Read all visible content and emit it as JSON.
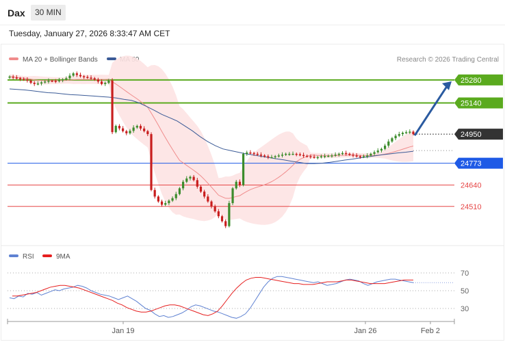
{
  "header": {
    "symbol": "Dax",
    "timeframe": "30 MIN",
    "datetime": "Tuesday, January 27, 2026 8:33:47 AM CET"
  },
  "legend": {
    "ma20_label": "MA 20 + Bollinger Bands",
    "ma50_label": "MA 50",
    "copyright": "Research © 2026 Trading Central",
    "rsi_label": "RSI",
    "rsi_ma_label": "9MA"
  },
  "colors": {
    "ma20": "#f08c8c",
    "ma50": "#3a5a96",
    "bands": "#fde3e3",
    "bull": "#3c8c2c",
    "bear": "#c81e1e",
    "resistance": "#5aaa1e",
    "current": "#333333",
    "pivot": "#1e5ae6",
    "support": "#e64646",
    "rsi": "#5f82d2",
    "rsi_ma": "#e61e1e",
    "arrow": "#2a5aa0"
  },
  "chart_data": [
    {
      "type": "candlestick",
      "title": "Dax",
      "interval": "30 MIN",
      "ylim": [
        24330,
        25350
      ],
      "x_ticks": [
        "Jan 19",
        "Jan 26",
        "Feb 2"
      ],
      "last_price": 24950,
      "levels": [
        {
          "value": 25280,
          "label": "25280",
          "kind": "resistance"
        },
        {
          "value": 25140,
          "label": "25140",
          "kind": "resistance"
        },
        {
          "value": 24950,
          "label": "24950",
          "kind": "current"
        },
        {
          "value": 24773,
          "label": "24773",
          "kind": "pivot"
        },
        {
          "value": 24640,
          "label": "24640",
          "kind": "support"
        },
        {
          "value": 24510,
          "label": "24510",
          "kind": "support"
        }
      ],
      "close": [
        25300,
        25295,
        25290,
        25285,
        25282,
        25276,
        25262,
        25255,
        25258,
        25265,
        25270,
        25275,
        25274,
        25272,
        25278,
        25283,
        25290,
        25306,
        25320,
        25310,
        25302,
        25298,
        25294,
        25290,
        25282,
        25270,
        25255,
        25262,
        25276,
        24962,
        25000,
        24985,
        24968,
        24955,
        24970,
        24990,
        25000,
        24984,
        24968,
        24950,
        24610,
        24570,
        24540,
        24520,
        24530,
        24545,
        24560,
        24585,
        24620,
        24660,
        24680,
        24690,
        24670,
        24630,
        24600,
        24570,
        24540,
        24510,
        24480,
        24450,
        24420,
        24390,
        24530,
        24620,
        24660,
        24640,
        24830,
        24838,
        24835,
        24830,
        24825,
        24820,
        24815,
        24810,
        24810,
        24815,
        24820,
        24825,
        24830,
        24830,
        24830,
        24827,
        24823,
        24818,
        24815,
        24812,
        24808,
        24810,
        24815,
        24817,
        24818,
        24820,
        24825,
        24830,
        24835,
        24830,
        24825,
        24820,
        24815,
        24812,
        24815,
        24820,
        24830,
        24840,
        24850,
        24860,
        24880,
        24905,
        24925,
        24940,
        24950,
        24958,
        24962,
        24965,
        24950
      ],
      "ma50": [
        25225,
        25222,
        25219,
        25214,
        25208,
        25202,
        25200,
        25195,
        25190,
        25188,
        25185,
        25182,
        25178,
        25175,
        25170,
        25162,
        25155,
        25140,
        25118,
        25095,
        25070,
        25050,
        25030,
        25000,
        24970,
        24935,
        24905,
        24880,
        24860,
        24850,
        24840,
        24830,
        24823,
        24815,
        24808,
        24800,
        24793,
        24785,
        24778,
        24771,
        24771,
        24773,
        24778,
        24785,
        24792,
        24798,
        24805,
        24812,
        24818,
        24825,
        24830,
        24836,
        24840,
        24846
      ],
      "rsi": {
        "levels": [
          70,
          50,
          30
        ],
        "values": [
          42,
          41,
          44,
          43,
          47,
          46,
          48,
          45,
          47,
          49,
          51,
          50,
          52,
          53,
          54,
          56,
          55,
          53,
          50,
          48,
          46,
          45,
          44,
          42,
          40,
          42,
          44,
          41,
          38,
          34,
          30,
          28,
          24,
          21,
          22,
          20,
          21,
          23,
          25,
          28,
          32,
          34,
          33,
          31,
          29,
          27,
          26,
          24,
          22,
          20,
          19,
          21,
          24,
          30,
          38,
          46,
          54,
          60,
          64,
          66,
          66,
          65,
          64,
          63,
          62,
          61,
          60,
          59,
          60,
          58,
          56,
          57,
          58,
          60,
          62,
          63,
          62,
          61,
          58,
          56,
          58,
          60,
          61,
          62,
          63,
          63,
          62,
          61,
          60,
          59
        ],
        "ma9": [
          44,
          44,
          45,
          46,
          47,
          48,
          50,
          52,
          54,
          55,
          56,
          56,
          55,
          54,
          53,
          51,
          49,
          47,
          45,
          43,
          41,
          39,
          36,
          34,
          31,
          29,
          27,
          26,
          26,
          27,
          29,
          31,
          33,
          34,
          34,
          33,
          31,
          29,
          27,
          25,
          23,
          22,
          24,
          27,
          33,
          40,
          47,
          53,
          58,
          62,
          64,
          65,
          65,
          64,
          63,
          62,
          61,
          60,
          59,
          58,
          58,
          57,
          57,
          57,
          58,
          59,
          60,
          60,
          60,
          61,
          62,
          62,
          61,
          60,
          59,
          58,
          58,
          58,
          58,
          59,
          60,
          61,
          62,
          62,
          62
        ]
      }
    }
  ]
}
